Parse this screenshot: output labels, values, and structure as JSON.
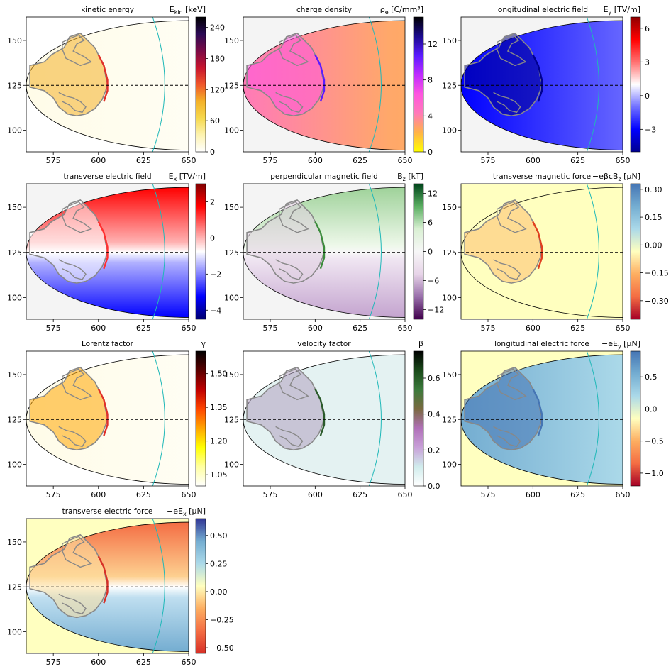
{
  "x_ticks": [
    "575",
    "600",
    "625",
    "650"
  ],
  "y_ticks": [
    "150",
    "125",
    "100"
  ],
  "panels": [
    {
      "id": "kinetic-energy",
      "title": "kinetic energy",
      "cbar_label": "E",
      "cbar_sub": "kin",
      "cbar_unit": " [keV]",
      "cbar_ticks": [
        "240",
        "180",
        "120",
        "60",
        "0"
      ],
      "cmap": [
        "#ffffff",
        "#fdf3b0",
        "#f6d84c",
        "#f4b128",
        "#f0562b",
        "#c7142e",
        "#7a0a46",
        "#2a0a55",
        "#000000"
      ],
      "field": "energy"
    },
    {
      "id": "charge-density",
      "title": "charge density",
      "cbar_label": "ρ",
      "cbar_sub": "e",
      "cbar_unit": " [C/mm³]",
      "cbar_ticks": [
        "12",
        "8",
        "4",
        "0"
      ],
      "cmap": [
        "#ffff00",
        "#ffb347",
        "#ff7ab8",
        "#ff55e0",
        "#c02bff",
        "#5a1bff",
        "#1a0a8c",
        "#000000"
      ],
      "field": "density"
    },
    {
      "id": "longitudinal-electric-field",
      "title": "longitudinal electric field",
      "cbar_label": "E",
      "cbar_sub": "y",
      "cbar_unit": " [TV/m]",
      "cbar_ticks": [
        "6",
        "3",
        "0",
        "−3"
      ],
      "cmap": [
        "#000090",
        "#0000ff",
        "#7070ff",
        "#ffffff",
        "#ff7070",
        "#ff0000",
        "#900000"
      ],
      "field": "ey"
    },
    {
      "id": "transverse-electric-field",
      "title": "transverse electric field",
      "cbar_label": "E",
      "cbar_sub": "x",
      "cbar_unit": " [TV/m]",
      "cbar_ticks": [
        "2",
        "0",
        "−2",
        "−4"
      ],
      "cmap": [
        "#000070",
        "#0000ff",
        "#8080ff",
        "#ffffff",
        "#ff8080",
        "#ff0000",
        "#800000"
      ],
      "field": "ex"
    },
    {
      "id": "perpendicular-magnetic-field",
      "title": "perpendicular magnetic field",
      "cbar_label": "B",
      "cbar_sub": "z",
      "cbar_unit": " [kT]",
      "cbar_ticks": [
        "12",
        "6",
        "0",
        "−6",
        "−12"
      ],
      "cmap": [
        "#40004b",
        "#9970ab",
        "#e7d4e8",
        "#f7f7f7",
        "#d9f0d3",
        "#5aae61",
        "#00441b"
      ],
      "field": "bz"
    },
    {
      "id": "transverse-magnetic-force",
      "title": "transverse magnetic force",
      "cbar_label": "−eβcB",
      "cbar_sub": "z",
      "cbar_unit": " [μN]",
      "cbar_ticks": [
        "0.30",
        "0.15",
        "0.00",
        "−0.15",
        "−0.30"
      ],
      "cmap": [
        "#a50026",
        "#f46d43",
        "#fdae61",
        "#ffffbf",
        "#abd9e9",
        "#74add1",
        "#4575b4"
      ],
      "field": "fmag"
    },
    {
      "id": "lorentz-factor",
      "title": "Lorentz factor",
      "cbar_label": "γ",
      "cbar_sub": "",
      "cbar_unit": "",
      "cbar_ticks": [
        "1.50",
        "1.35",
        "1.20",
        "1.05"
      ],
      "cmap": [
        "#ffffff",
        "#ffffa0",
        "#ffff00",
        "#ffa500",
        "#ff4500",
        "#c00000",
        "#5a0000",
        "#000000"
      ],
      "field": "energy"
    },
    {
      "id": "velocity-factor",
      "title": "velocity factor",
      "cbar_label": "β",
      "cbar_sub": "",
      "cbar_unit": "",
      "cbar_ticks": [
        "0.6",
        "0.4",
        "0.2",
        "0.0"
      ],
      "cmap": [
        "#ffffff",
        "#d0ecec",
        "#c8a0d8",
        "#b070b8",
        "#7a6a40",
        "#3c7a3c",
        "#1a4a1a",
        "#000000"
      ],
      "field": "beta"
    },
    {
      "id": "longitudinal-electric-force",
      "title": "longitudinal electric force",
      "cbar_label": "−eE",
      "cbar_sub": "y",
      "cbar_unit": " [μN]",
      "cbar_ticks": [
        "0.5",
        "0.0",
        "−0.5",
        "−1.0"
      ],
      "cmap": [
        "#a50026",
        "#f46d43",
        "#fdae61",
        "#ffffbf",
        "#abd9e9",
        "#74add1",
        "#4575b4"
      ],
      "field": "fy"
    },
    {
      "id": "transverse-electric-force",
      "title": "transverse electric force",
      "cbar_label": "−eE",
      "cbar_sub": "x",
      "cbar_unit": " [μN]",
      "cbar_ticks": [
        "0.50",
        "0.25",
        "0.00",
        "−0.25",
        "−0.50"
      ],
      "cmap": [
        "#d73027",
        "#f46d43",
        "#fdae61",
        "#ffffbf",
        "#abd9e9",
        "#74add1",
        "#313695"
      ],
      "field": "fx"
    }
  ],
  "chart_data": {
    "type": "heatmap",
    "xlim": [
      560,
      650
    ],
    "ylim": [
      88,
      163
    ],
    "x_ticks": [
      575,
      600,
      625,
      650
    ],
    "y_ticks": [
      100,
      125,
      150
    ],
    "reference_line_y": 125,
    "panels": [
      {
        "title": "kinetic energy",
        "cbar": "E_kin [keV]",
        "range": [
          0,
          260
        ],
        "ticks": [
          0,
          60,
          120,
          180,
          240
        ]
      },
      {
        "title": "charge density",
        "cbar": "ρ_e [C/mm³]",
        "range": [
          0,
          15
        ],
        "ticks": [
          0,
          4,
          8,
          12
        ]
      },
      {
        "title": "longitudinal electric field",
        "cbar": "E_y [TV/m]",
        "range": [
          -5,
          7
        ],
        "ticks": [
          -3,
          0,
          3,
          6
        ]
      },
      {
        "title": "transverse electric field",
        "cbar": "E_x [TV/m]",
        "range": [
          -4.5,
          3
        ],
        "ticks": [
          -4,
          -2,
          0,
          2
        ]
      },
      {
        "title": "perpendicular magnetic field",
        "cbar": "B_z [kT]",
        "range": [
          -14,
          14
        ],
        "ticks": [
          -12,
          -6,
          0,
          6,
          12
        ]
      },
      {
        "title": "transverse magnetic force",
        "cbar": "−eβcB_z [μN]",
        "range": [
          -0.4,
          0.33
        ],
        "ticks": [
          -0.3,
          -0.15,
          0.0,
          0.15,
          0.3
        ]
      },
      {
        "title": "Lorentz factor",
        "cbar": "γ",
        "range": [
          1.0,
          1.6
        ],
        "ticks": [
          1.05,
          1.2,
          1.35,
          1.5
        ]
      },
      {
        "title": "velocity factor",
        "cbar": "β",
        "range": [
          0,
          0.75
        ],
        "ticks": [
          0.0,
          0.2,
          0.4,
          0.6
        ]
      },
      {
        "title": "longitudinal electric force",
        "cbar": "−eE_y [μN]",
        "range": [
          -1.2,
          0.9
        ],
        "ticks": [
          -1.0,
          -0.5,
          0.0,
          0.5
        ]
      },
      {
        "title": "transverse electric force",
        "cbar": "−eE_x [μN]",
        "range": [
          -0.55,
          0.65
        ],
        "ticks": [
          -0.5,
          -0.25,
          0.0,
          0.25,
          0.5
        ]
      }
    ]
  }
}
